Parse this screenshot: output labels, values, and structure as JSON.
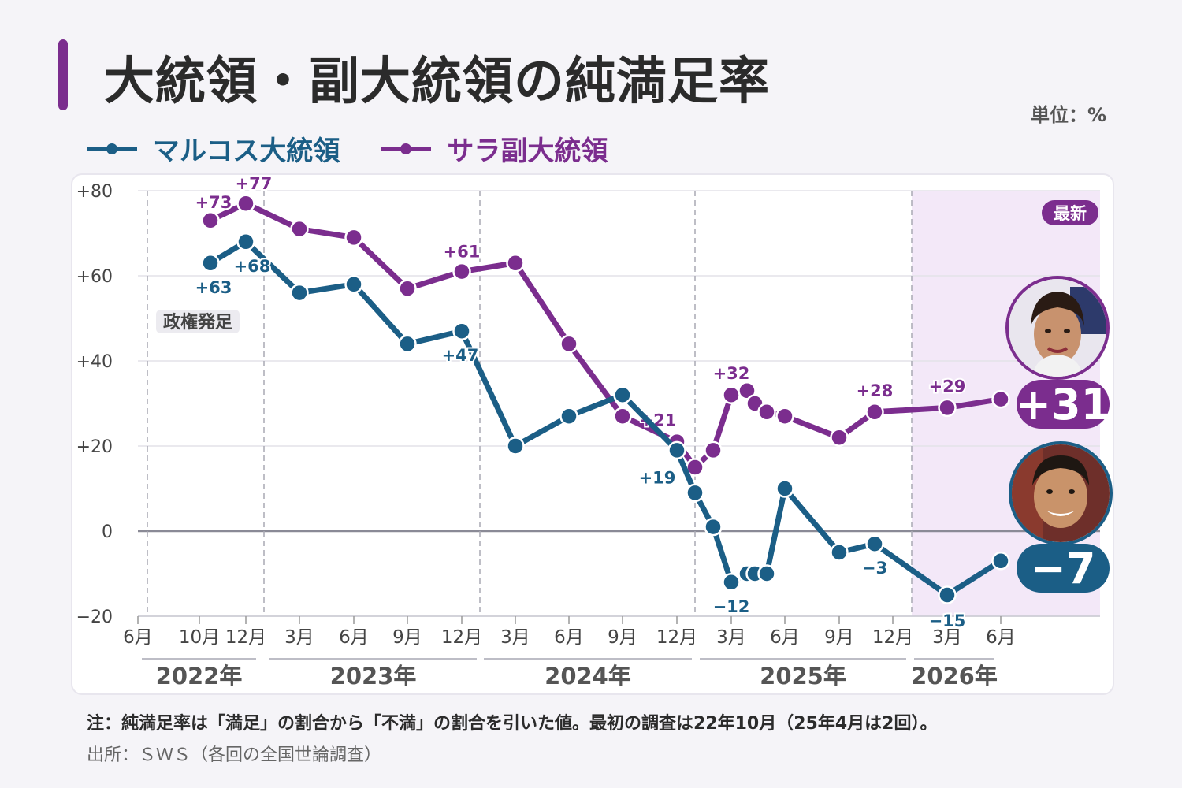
{
  "header": {
    "title": "大統領・副大統領の純満足率",
    "unit": "単位：%"
  },
  "legend": {
    "marcos": "マルコス大統領",
    "sara": "サラ副大統領"
  },
  "colors": {
    "marcos": "#1b5e86",
    "sara": "#7b2d8e",
    "latest_band": "#f3e8f8",
    "grid": "#e3e2e8"
  },
  "annotations": {
    "inauguration": "政権発足",
    "latest": "最新",
    "marcos_latest": "−7",
    "sara_latest": "+31"
  },
  "icons": {
    "sara_avatar": "sara-duterte-portrait",
    "marcos_avatar": "marcos-portrait"
  },
  "chart_data": {
    "type": "line",
    "y_ticks": [
      "+80",
      "+60",
      "+40",
      "+20",
      "0",
      "−20"
    ],
    "ylim": [
      -20,
      80
    ],
    "x_ticks": [
      "6月",
      "10月",
      "12月",
      "3月",
      "6月",
      "9月",
      "12月",
      "3月",
      "6月",
      "9月",
      "12月",
      "3月",
      "6月",
      "9月",
      "12月",
      "3月",
      "6月"
    ],
    "year_labels": [
      "2022年",
      "2023年",
      "2024年",
      "2025年",
      "2026年"
    ],
    "series": [
      {
        "name": "サラ副大統領",
        "points": [
          {
            "x": "2022-10",
            "y": 73,
            "label": "+73"
          },
          {
            "x": "2022-12",
            "y": 77,
            "label": "+77"
          },
          {
            "x": "2023-03",
            "y": 71
          },
          {
            "x": "2023-06",
            "y": 69
          },
          {
            "x": "2023-09",
            "y": 57
          },
          {
            "x": "2023-12",
            "y": 61,
            "label": "+61"
          },
          {
            "x": "2024-03",
            "y": 63
          },
          {
            "x": "2024-06",
            "y": 44
          },
          {
            "x": "2024-09",
            "y": 27
          },
          {
            "x": "2024-12",
            "y": 21,
            "label": "+21"
          },
          {
            "x": "2025-01",
            "y": 15
          },
          {
            "x": "2025-02",
            "y": 19
          },
          {
            "x": "2025-03",
            "y": 32,
            "label": "+32"
          },
          {
            "x": "2025-04a",
            "y": 33
          },
          {
            "x": "2025-04b",
            "y": 30
          },
          {
            "x": "2025-05",
            "y": 28
          },
          {
            "x": "2025-06",
            "y": 27
          },
          {
            "x": "2025-09",
            "y": 22
          },
          {
            "x": "2025-11",
            "y": 28,
            "label": "+28"
          },
          {
            "x": "2026-03",
            "y": 29,
            "label": "+29"
          },
          {
            "x": "2026-06",
            "y": 31
          }
        ]
      },
      {
        "name": "マルコス大統領",
        "points": [
          {
            "x": "2022-10",
            "y": 63,
            "label": "+63"
          },
          {
            "x": "2022-12",
            "y": 68,
            "label": "+68"
          },
          {
            "x": "2023-03",
            "y": 56
          },
          {
            "x": "2023-06",
            "y": 58
          },
          {
            "x": "2023-09",
            "y": 44
          },
          {
            "x": "2023-12",
            "y": 47,
            "label": "+47"
          },
          {
            "x": "2024-03",
            "y": 20
          },
          {
            "x": "2024-06",
            "y": 27
          },
          {
            "x": "2024-09",
            "y": 32
          },
          {
            "x": "2024-12",
            "y": 19,
            "label": "+19"
          },
          {
            "x": "2025-01",
            "y": 9
          },
          {
            "x": "2025-02",
            "y": 1
          },
          {
            "x": "2025-03",
            "y": -12,
            "label": "−12"
          },
          {
            "x": "2025-04a",
            "y": -10
          },
          {
            "x": "2025-04b",
            "y": -10
          },
          {
            "x": "2025-05",
            "y": -10
          },
          {
            "x": "2025-06",
            "y": 10
          },
          {
            "x": "2025-09",
            "y": -5
          },
          {
            "x": "2025-11",
            "y": -3,
            "label": "−3"
          },
          {
            "x": "2026-03",
            "y": -15,
            "label": "−15"
          },
          {
            "x": "2026-06",
            "y": -7
          }
        ]
      }
    ]
  },
  "footer": {
    "note": "注：純満足率は「満足」の割合から「不満」の割合を引いた値。最初の調査は22年10月（25年4月は2回）。",
    "source": "出所：ＳＷＳ（各回の全国世論調査）"
  }
}
